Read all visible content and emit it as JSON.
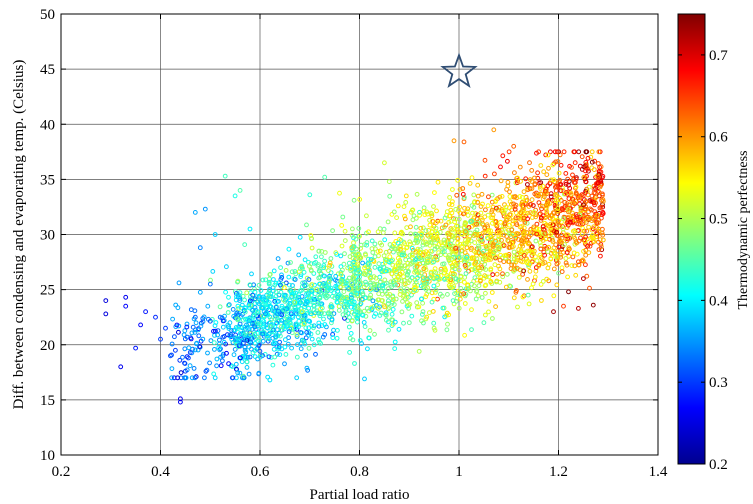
{
  "chart_data": {
    "type": "scatter",
    "title": "",
    "xlabel": "Partial load ratio",
    "ylabel": "Diff. between condensing and evaporating temp. (Celsius)",
    "xlim": [
      0.2,
      1.4
    ],
    "ylim": [
      10,
      50
    ],
    "xticks": [
      "0.2",
      "0.4",
      "0.6",
      "0.8",
      "1",
      "1.2",
      "1.4"
    ],
    "yticks": [
      "10",
      "15",
      "20",
      "25",
      "30",
      "35",
      "40",
      "45",
      "50"
    ],
    "grid": true,
    "colorbar": {
      "label": "Thermodynamic perfectness",
      "range": [
        0.2,
        0.75
      ],
      "ticks": [
        "0.2",
        "0.3",
        "0.4",
        "0.5",
        "0.6",
        "0.7"
      ],
      "colormap": "jet"
    },
    "marker": {
      "type": "star",
      "x": 1.0,
      "y": 45,
      "color": "#2f4d73"
    },
    "series": [
      {
        "marker": "open-circle",
        "points": [
          [
            0.29,
            24.0,
            0.25
          ],
          [
            0.29,
            22.8,
            0.25
          ],
          [
            0.33,
            24.3,
            0.26
          ],
          [
            0.33,
            23.5,
            0.27
          ],
          [
            0.32,
            18.0,
            0.26
          ],
          [
            0.36,
            21.8,
            0.27
          ],
          [
            0.35,
            19.7,
            0.28
          ],
          [
            0.37,
            23.0,
            0.28
          ],
          [
            0.39,
            22.5,
            0.29
          ],
          [
            0.4,
            20.5,
            0.3
          ],
          [
            0.41,
            21.5,
            0.3
          ],
          [
            0.42,
            19.0,
            0.31
          ],
          [
            0.43,
            19.5,
            0.3
          ],
          [
            0.44,
            15.1,
            0.26
          ],
          [
            0.44,
            14.8,
            0.26
          ],
          [
            0.45,
            17.6,
            0.3
          ],
          [
            0.46,
            19.3,
            0.3
          ],
          [
            0.47,
            22.5,
            0.32
          ],
          [
            0.47,
            32.0,
            0.36
          ],
          [
            0.48,
            28.8,
            0.34
          ],
          [
            0.49,
            32.3,
            0.35
          ],
          [
            0.5,
            25.5,
            0.33
          ],
          [
            0.51,
            30.0,
            0.38
          ],
          [
            0.52,
            22.5,
            0.33
          ],
          [
            0.53,
            35.3,
            0.44
          ],
          [
            0.55,
            33.5,
            0.42
          ],
          [
            0.56,
            34.0,
            0.45
          ],
          [
            0.57,
            20.5,
            0.36
          ],
          [
            0.57,
            19.5,
            0.36
          ],
          [
            0.58,
            30.5,
            0.4
          ],
          [
            0.62,
            16.8,
            0.39
          ],
          [
            0.65,
            19.8,
            0.4
          ],
          [
            0.7,
            33.6,
            0.43
          ],
          [
            0.73,
            35.2,
            0.45
          ],
          [
            0.79,
            18.3,
            0.43
          ],
          [
            0.81,
            16.9,
            0.38
          ],
          [
            0.85,
            36.5,
            0.52
          ],
          [
            0.86,
            34.8,
            0.5
          ],
          [
            0.9,
            22.0,
            0.46
          ],
          [
            0.92,
            19.4,
            0.5
          ],
          [
            0.95,
            21.5,
            0.5
          ],
          [
            0.99,
            38.5,
            0.6
          ],
          [
            1.01,
            38.4,
            0.63
          ],
          [
            1.05,
            22.0,
            0.45
          ],
          [
            1.07,
            39.5,
            0.6
          ],
          [
            1.11,
            38.0,
            0.63
          ],
          [
            1.13,
            26.7,
            0.72
          ],
          [
            1.16,
            37.5,
            0.65
          ],
          [
            1.18,
            36.0,
            0.6
          ],
          [
            1.19,
            23.0,
            0.73
          ],
          [
            1.21,
            23.5,
            0.65
          ],
          [
            1.22,
            24.8,
            0.75
          ],
          [
            1.24,
            23.3,
            0.72
          ],
          [
            1.25,
            26.0,
            0.72
          ],
          [
            1.27,
            23.6,
            0.74
          ],
          [
            1.28,
            35.2,
            0.62
          ],
          [
            1.29,
            33.0,
            0.6
          ],
          [
            1.29,
            29.5,
            0.58
          ]
        ]
      }
    ]
  }
}
